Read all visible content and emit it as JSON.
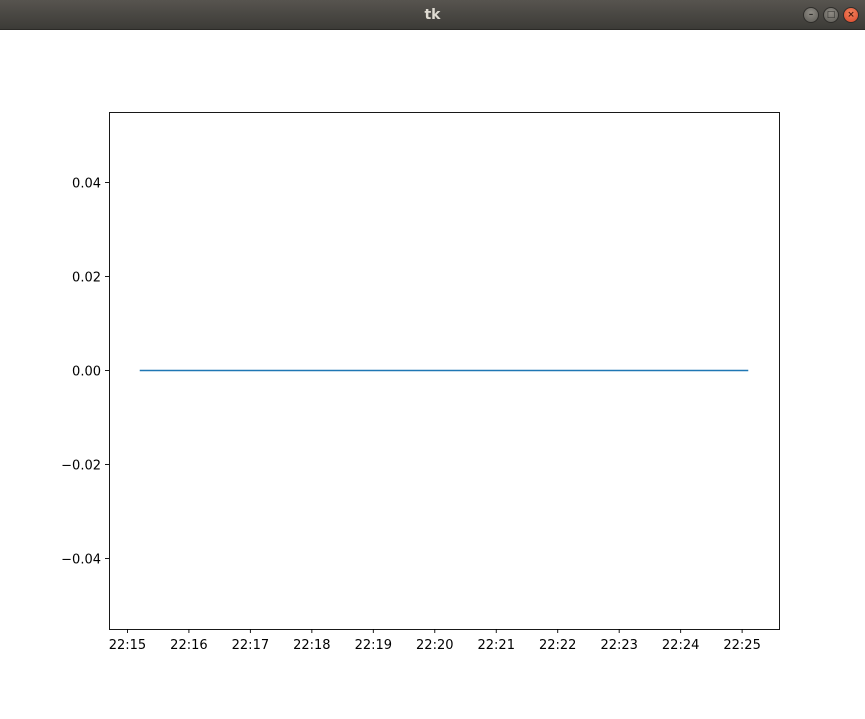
{
  "window": {
    "title": "tk",
    "buttons": {
      "minimize_icon": "minimize-icon",
      "maximize_icon": "maximize-icon",
      "close_icon": "close-icon",
      "minimize_glyph": "–",
      "maximize_glyph": "□",
      "close_glyph": "×"
    }
  },
  "chart_data": {
    "type": "line",
    "title": "",
    "xlabel": "",
    "ylabel": "",
    "x_ticks": [
      "22:15",
      "22:16",
      "22:17",
      "22:18",
      "22:19",
      "22:20",
      "22:21",
      "22:22",
      "22:23",
      "22:24",
      "22:25"
    ],
    "y_ticks": [
      "0.04",
      "0.02",
      "0.00",
      "−0.02",
      "−0.04"
    ],
    "y_tick_values": [
      0.04,
      0.02,
      0.0,
      -0.02,
      -0.04
    ],
    "xlim": [
      "22:14.7",
      "22:25.6"
    ],
    "ylim": [
      -0.055,
      0.055
    ],
    "grid": false,
    "series": [
      {
        "x": [
          "22:15.2",
          "22:25.1"
        ],
        "y": [
          0.0,
          0.0
        ],
        "color": "#1f77b4"
      }
    ]
  }
}
